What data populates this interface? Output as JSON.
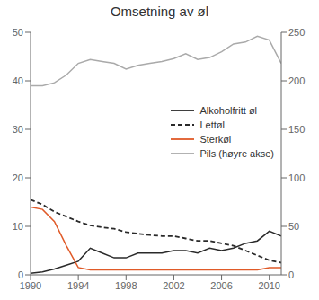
{
  "chart_data": {
    "type": "line",
    "title": "Omsetning av øl",
    "x": [
      1990,
      1991,
      1992,
      1993,
      1994,
      1995,
      1996,
      1997,
      1998,
      1999,
      2000,
      2001,
      2002,
      2003,
      2004,
      2005,
      2006,
      2007,
      2008,
      2009,
      2010,
      2011
    ],
    "xlim": [
      1990,
      2011
    ],
    "xticks": [
      1990,
      1994,
      1998,
      2002,
      2006,
      2010
    ],
    "ylim": [
      0,
      50
    ],
    "yticks": [
      0,
      10,
      20,
      30,
      40,
      50
    ],
    "y2lim": [
      0,
      250
    ],
    "y2ticks": [
      0,
      50,
      100,
      150,
      200,
      250
    ],
    "legend": "right",
    "series": [
      {
        "name": "Alkoholfritt øl",
        "color": "#2a2a2a",
        "line_style": "solid",
        "values": [
          0.3,
          0.6,
          1.2,
          2.0,
          2.8,
          5.5,
          4.5,
          3.5,
          3.5,
          4.5,
          4.5,
          4.5,
          5.0,
          5.0,
          4.5,
          5.5,
          5.0,
          5.5,
          6.5,
          7.0,
          9.0,
          8.0
        ]
      },
      {
        "name": "Lettøl",
        "color": "#2a2a2a",
        "line_style": "dashed",
        "values": [
          15.5,
          14.5,
          13.0,
          12.0,
          11.0,
          10.2,
          9.8,
          9.5,
          8.8,
          8.5,
          8.2,
          8.0,
          8.0,
          7.5,
          7.0,
          7.0,
          6.5,
          6.0,
          5.0,
          4.0,
          3.0,
          2.5
        ]
      },
      {
        "name": "Sterkøl",
        "color": "#e05a28",
        "line_style": "solid",
        "values": [
          14.0,
          13.5,
          11.0,
          6.0,
          1.5,
          1.0,
          1.0,
          1.0,
          1.0,
          1.0,
          1.0,
          1.0,
          1.0,
          1.0,
          1.0,
          1.0,
          1.0,
          1.0,
          1.0,
          1.0,
          1.5,
          1.5
        ]
      },
      {
        "name": "Pils (høyre akse)",
        "color": "#aaaaaa",
        "line_style": "solid",
        "axis": "y2",
        "values": [
          195,
          195,
          198,
          206,
          218,
          222,
          220,
          218,
          212,
          216,
          218,
          220,
          223,
          228,
          222,
          224,
          230,
          238,
          240,
          246,
          242,
          218
        ]
      }
    ]
  }
}
